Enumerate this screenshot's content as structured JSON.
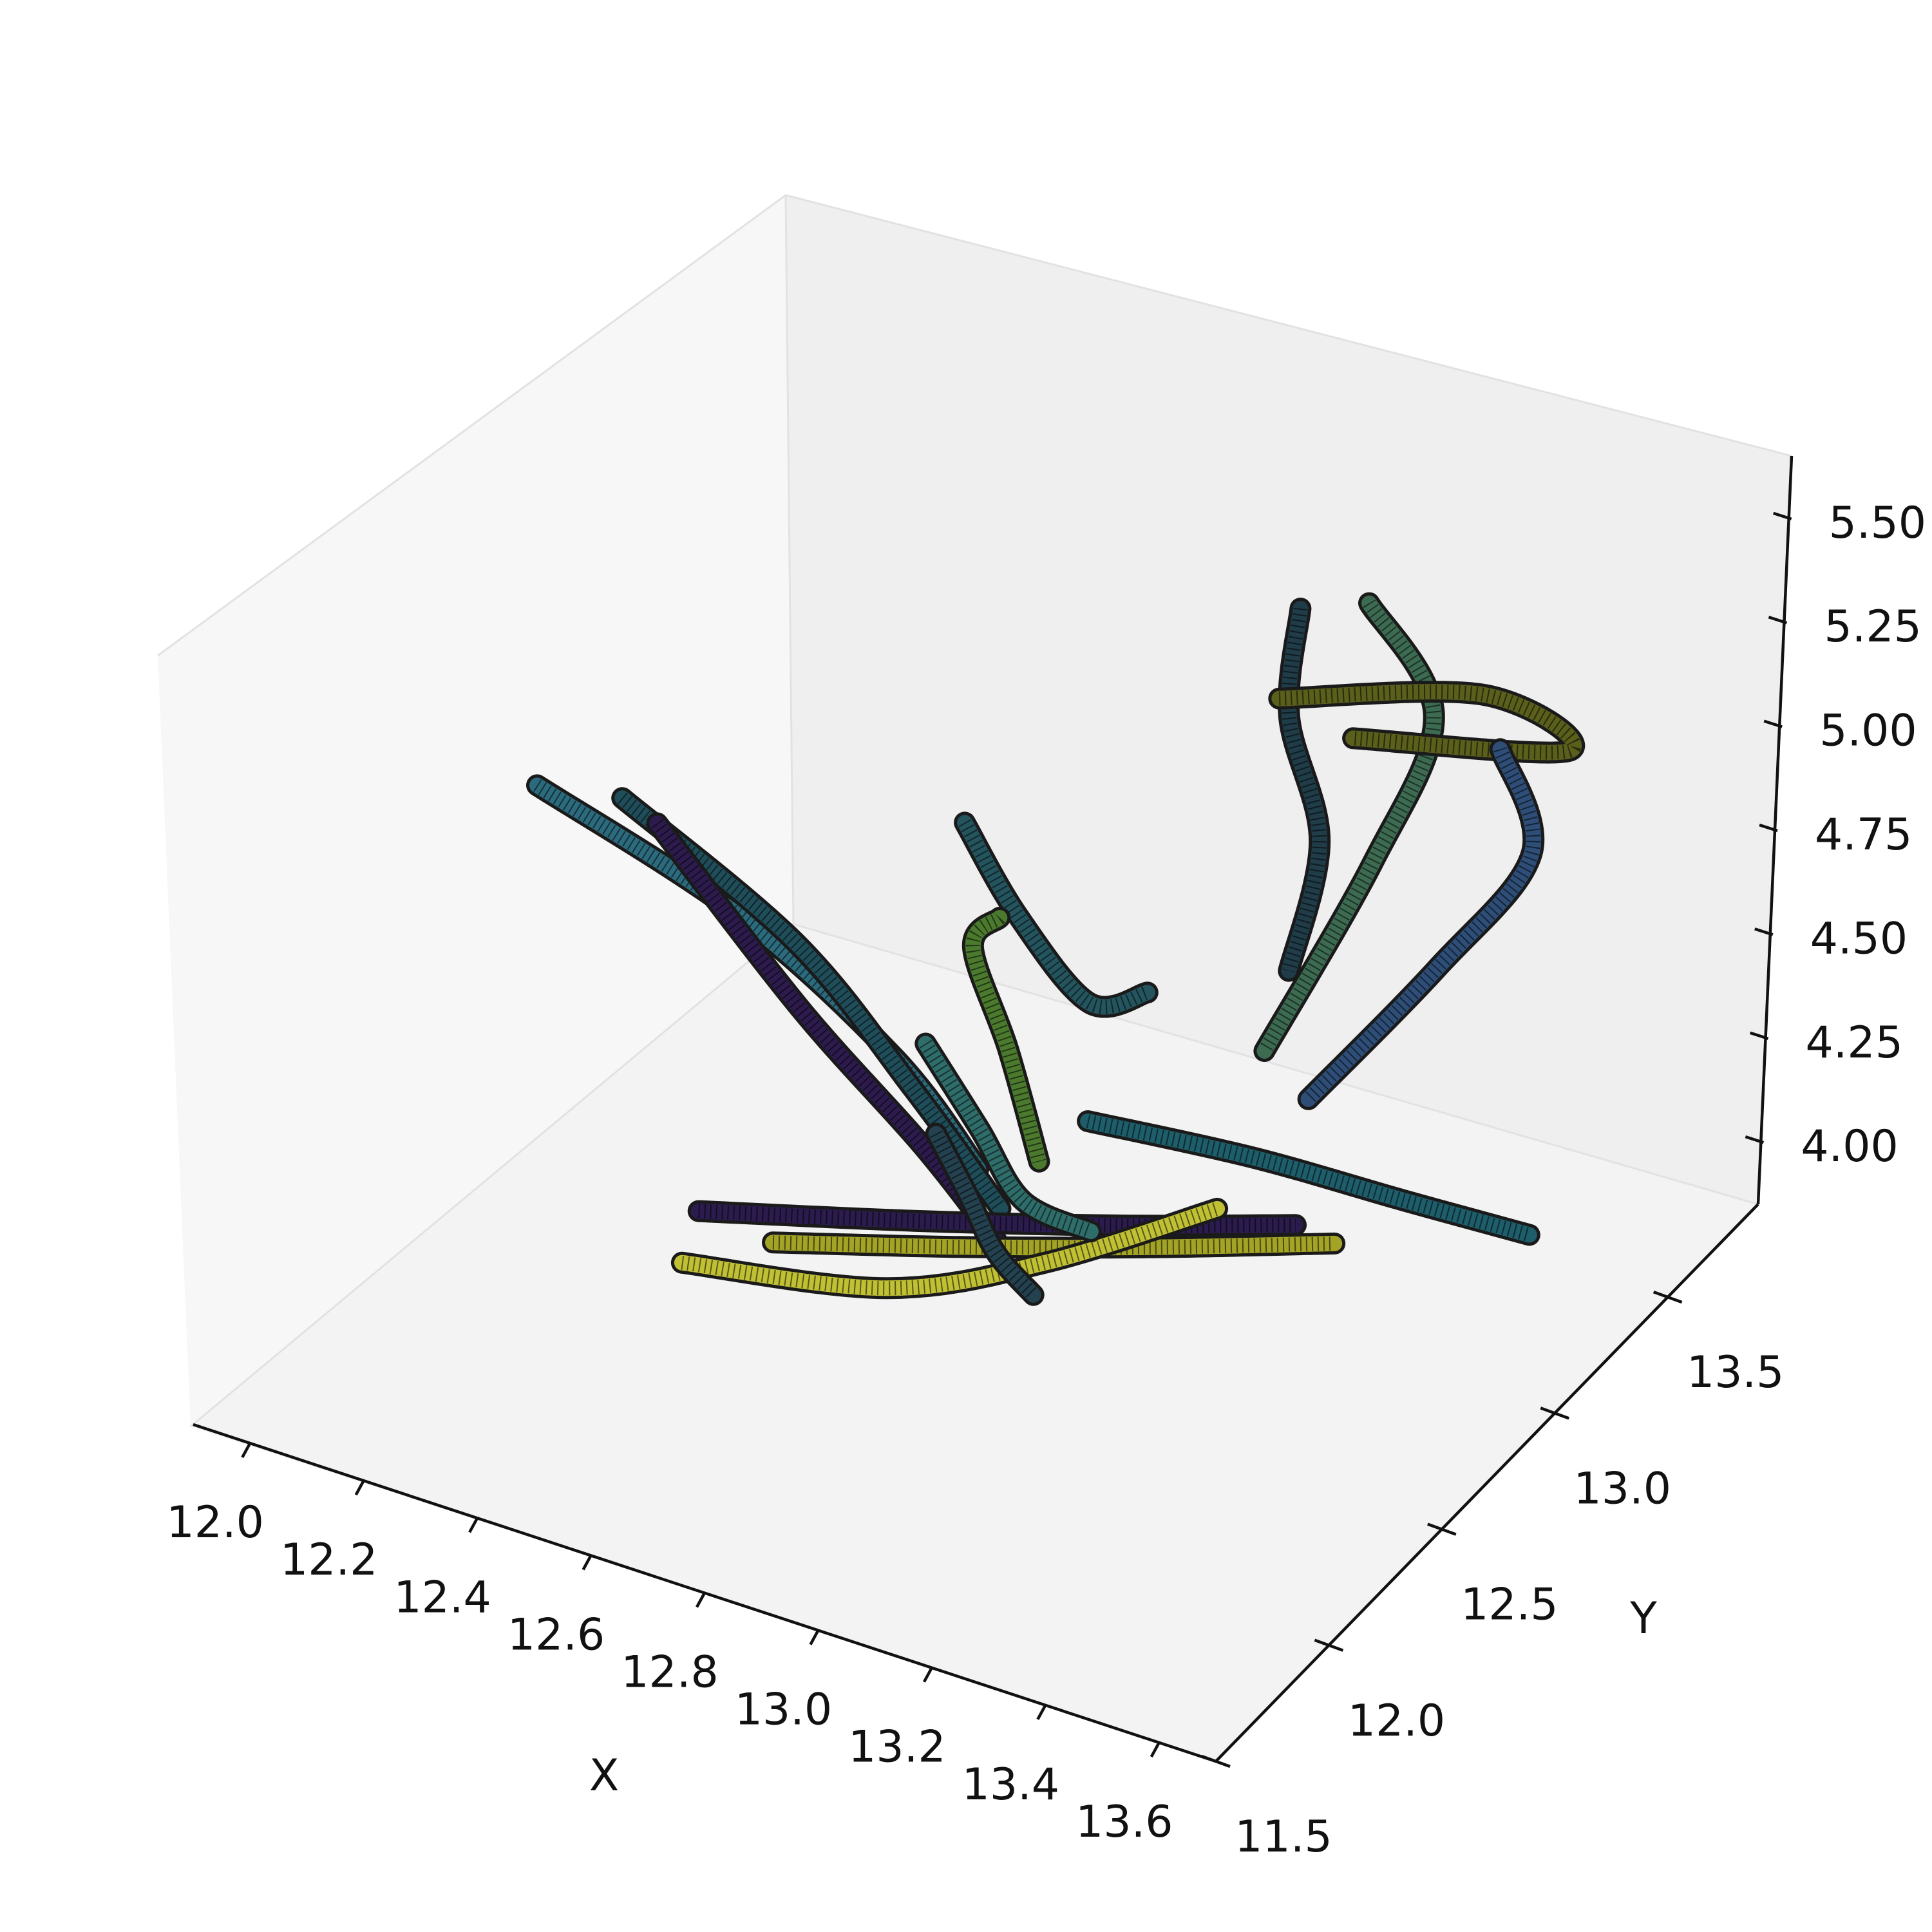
{
  "chart_data": {
    "type": "line-3d",
    "title": "",
    "xlabel": "X",
    "ylabel": "Y",
    "zlabel": "",
    "x_ticks": [
      "12.0",
      "12.2",
      "12.4",
      "12.6",
      "12.8",
      "13.0",
      "13.2",
      "13.4",
      "13.6"
    ],
    "y_ticks": [
      "11.5",
      "12.0",
      "12.5",
      "13.0",
      "13.5"
    ],
    "z_ticks": [
      "4.00",
      "4.25",
      "4.50",
      "4.75",
      "5.00",
      "5.25",
      "5.50"
    ],
    "xlim": [
      11.9,
      13.7
    ],
    "ylim": [
      11.5,
      13.9
    ],
    "zlim": [
      3.85,
      5.65
    ],
    "grid": false,
    "legend": "none",
    "colormap": "viridis",
    "tube_edge_color": "#1a1a1a",
    "series": [
      {
        "color": "#2c6b7d",
        "points": [
          [
            12.05,
            12.65,
            4.48
          ],
          [
            12.45,
            12.55,
            4.4
          ],
          [
            12.75,
            12.5,
            4.22
          ],
          [
            12.92,
            12.45,
            4.06
          ]
        ]
      },
      {
        "color": "#1f4e5a",
        "points": [
          [
            12.18,
            12.7,
            4.48
          ],
          [
            12.55,
            12.55,
            4.38
          ],
          [
            12.8,
            12.45,
            4.2
          ],
          [
            12.98,
            12.4,
            4.02
          ]
        ]
      },
      {
        "color": "#2d1b4e",
        "points": [
          [
            12.28,
            12.6,
            4.52
          ],
          [
            12.6,
            12.45,
            4.3
          ],
          [
            12.85,
            12.38,
            4.12
          ],
          [
            13.02,
            12.32,
            3.98
          ]
        ]
      },
      {
        "color": "#24545e",
        "points": [
          [
            12.72,
            12.85,
            4.58
          ],
          [
            12.82,
            12.85,
            4.4
          ],
          [
            12.95,
            12.85,
            4.25
          ],
          [
            13.05,
            12.85,
            4.32
          ]
        ]
      },
      {
        "color": "#4b7a2e",
        "points": [
          [
            12.9,
            12.55,
            4.6
          ],
          [
            12.8,
            12.7,
            4.4
          ],
          [
            12.85,
            12.75,
            4.15
          ],
          [
            12.95,
            12.65,
            3.98
          ]
        ]
      },
      {
        "color": "#1f3c48",
        "points": [
          [
            13.08,
            13.4,
            4.95
          ],
          [
            13.05,
            13.45,
            4.65
          ],
          [
            13.15,
            13.35,
            4.45
          ],
          [
            13.2,
            13.1,
            4.3
          ]
        ]
      },
      {
        "color": "#3d6b52",
        "points": [
          [
            13.18,
            13.45,
            4.98
          ],
          [
            13.32,
            13.4,
            4.8
          ],
          [
            13.3,
            13.2,
            4.55
          ],
          [
            13.22,
            12.95,
            4.2
          ]
        ]
      },
      {
        "color": "#5a5f1c",
        "points": [
          [
            13.05,
            13.4,
            4.72
          ],
          [
            13.35,
            13.55,
            4.78
          ],
          [
            13.52,
            13.5,
            4.75
          ],
          [
            13.2,
            13.35,
            4.72
          ]
        ]
      },
      {
        "color": "#2e4e78",
        "points": [
          [
            13.4,
            13.5,
            4.7
          ],
          [
            13.5,
            13.4,
            4.55
          ],
          [
            13.42,
            13.2,
            4.35
          ],
          [
            13.3,
            12.95,
            4.12
          ]
        ]
      },
      {
        "color": "#1e5d6a",
        "points": [
          [
            13.05,
            12.6,
            4.15
          ],
          [
            13.3,
            12.7,
            4.12
          ],
          [
            13.55,
            12.75,
            4.1
          ],
          [
            13.75,
            12.8,
            4.08
          ]
        ]
      },
      {
        "color": "#a3a326",
        "points": [
          [
            12.7,
            12.1,
            3.98
          ],
          [
            12.95,
            12.3,
            3.97
          ],
          [
            13.2,
            12.5,
            3.97
          ],
          [
            13.45,
            12.7,
            3.98
          ]
        ]
      },
      {
        "color": "#2b1c4d",
        "points": [
          [
            12.55,
            12.15,
            3.96
          ],
          [
            12.85,
            12.35,
            3.96
          ],
          [
            13.15,
            12.5,
            4.0
          ],
          [
            13.4,
            12.65,
            4.03
          ]
        ]
      },
      {
        "color": "#c0c035",
        "points": [
          [
            12.6,
            11.95,
            3.97
          ],
          [
            12.9,
            12.1,
            3.96
          ],
          [
            13.1,
            12.3,
            4.0
          ],
          [
            13.3,
            12.55,
            4.08
          ]
        ]
      },
      {
        "color": "#2f6d6a",
        "points": [
          [
            12.8,
            12.5,
            4.28
          ],
          [
            12.9,
            12.5,
            4.12
          ],
          [
            13.0,
            12.45,
            4.02
          ],
          [
            13.12,
            12.45,
            4.0
          ]
        ]
      },
      {
        "color": "#24414f",
        "points": [
          [
            12.9,
            12.3,
            4.22
          ],
          [
            12.96,
            12.3,
            4.1
          ],
          [
            13.02,
            12.28,
            4.0
          ],
          [
            13.1,
            12.25,
            3.95
          ]
        ]
      }
    ]
  }
}
